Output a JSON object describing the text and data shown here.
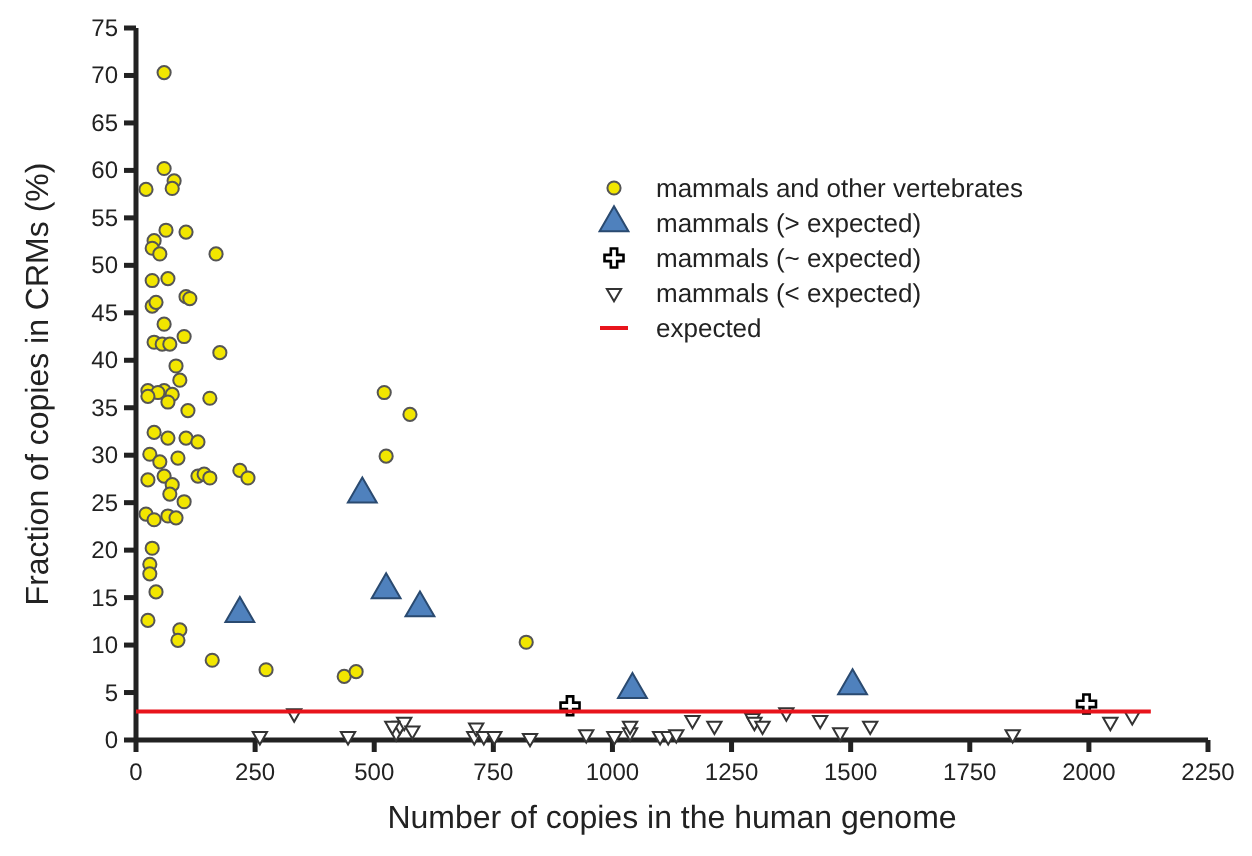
{
  "chart_data": {
    "type": "scatter",
    "xlabel": "Number of copies in the human genome",
    "ylabel": "Fraction of copies in CRMs  (%)",
    "xlim": [
      0,
      2250
    ],
    "ylim": [
      0,
      75
    ],
    "xticks": [
      0,
      250,
      500,
      750,
      1000,
      1250,
      1500,
      1750,
      2000,
      2250
    ],
    "yticks": [
      0,
      5,
      10,
      15,
      20,
      25,
      30,
      35,
      40,
      45,
      50,
      55,
      60,
      65,
      70,
      75
    ],
    "grid": false,
    "legend": "top right",
    "series": [
      {
        "name": "mammals and other vertebrates",
        "color": "#f2e600",
        "marker": "circle",
        "x": [
          59,
          59,
          21,
          80,
          76,
          63,
          105,
          38,
          34,
          50,
          168,
          34,
          67,
          105,
          113,
          34,
          42,
          59,
          101,
          38,
          55,
          71,
          176,
          84,
          92,
          25,
          59,
          76,
          46,
          25,
          67,
          109,
          155,
          521,
          575,
          38,
          67,
          105,
          130,
          29,
          50,
          88,
          525,
          59,
          76,
          25,
          130,
          143,
          155,
          218,
          235,
          71,
          101,
          21,
          67,
          84,
          38,
          34,
          29,
          29,
          42,
          25,
          92,
          88,
          160,
          273,
          437,
          462,
          819
        ],
        "values": [
          70.3,
          60.2,
          58,
          58.9,
          58.1,
          53.7,
          53.5,
          52.6,
          51.8,
          51.2,
          51.2,
          48.4,
          48.6,
          46.7,
          46.5,
          45.7,
          46.1,
          43.8,
          42.5,
          41.9,
          41.7,
          41.7,
          40.8,
          39.4,
          37.9,
          36.8,
          36.8,
          36.4,
          36.6,
          36.2,
          35.6,
          34.7,
          36,
          36.6,
          34.3,
          32.4,
          31.8,
          31.8,
          31.4,
          30.1,
          29.3,
          29.7,
          29.9,
          27.8,
          26.9,
          27.4,
          27.8,
          28,
          27.6,
          28.4,
          27.6,
          25.9,
          25.1,
          23.8,
          23.6,
          23.4,
          23.2,
          20.2,
          18.5,
          17.5,
          15.6,
          12.6,
          11.6,
          10.5,
          8.4,
          7.4,
          6.7,
          7.2,
          10.3
        ]
      },
      {
        "name": "mammals (> expected)",
        "color": "#4f81bd",
        "marker": "triangle",
        "x": [
          218,
          475,
          525,
          596,
          1042,
          1504
        ],
        "values": [
          13.3,
          25.9,
          15.8,
          13.9,
          5.3,
          5.7
        ]
      },
      {
        "name": "mammals (~ expected)",
        "color": "#000000",
        "marker": "cross",
        "x": [
          911,
          1995
        ],
        "values": [
          3.6,
          3.8
        ]
      },
      {
        "name": "mammals (< expected)",
        "color": "#ffffff",
        "marker": "triangle-down",
        "x": [
          260,
          332,
          445,
          546,
          554,
          563,
          580,
          538,
          710,
          714,
          730,
          752,
          827,
          945,
          1004,
          1037,
          1037,
          1100,
          1117,
          1134,
          1168,
          1214,
          1294,
          1298,
          1315,
          1365,
          1436,
          1478,
          1541,
          1840,
          2045,
          2091
        ],
        "values": [
          0.4,
          2.8,
          0.4,
          0.8,
          1.5,
          1.9,
          1,
          1.5,
          0.4,
          1.3,
          0.4,
          0.4,
          0.2,
          0.6,
          0.4,
          0.8,
          1.5,
          0.4,
          0.4,
          0.6,
          2.1,
          1.5,
          2.3,
          1.9,
          1.5,
          2.9,
          2.1,
          0.8,
          1.5,
          0.6,
          1.9,
          2.5
        ]
      },
      {
        "name": "expected",
        "type": "line",
        "color": "#e8141c",
        "marker": "none",
        "x": [
          0,
          2130
        ],
        "values": [
          3,
          3
        ]
      }
    ]
  }
}
